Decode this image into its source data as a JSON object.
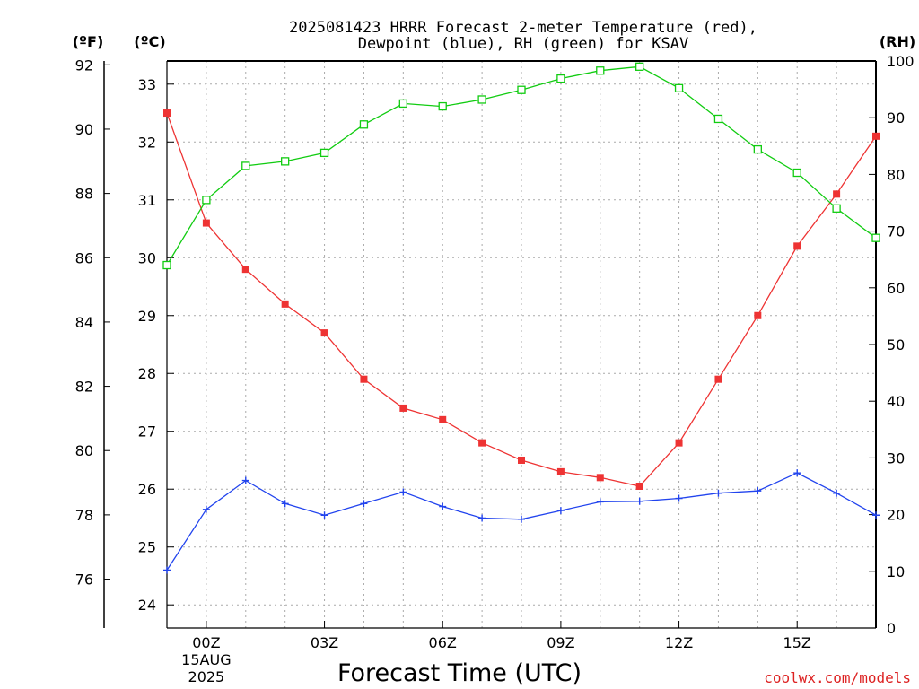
{
  "chart_data": {
    "type": "line",
    "title_line1": "2025081423 HRRR Forecast 2-meter Temperature (red),",
    "title_line2": "Dewpoint (blue), RH (green) for KSAV",
    "left_outer_unit": "(ºF)",
    "left_inner_unit": "(ºC)",
    "right_unit": "(RH)",
    "xlabel": "Forecast Time (UTC)",
    "watermark": "coolwx.com/models",
    "x_hours": [
      -1,
      0,
      1,
      2,
      3,
      4,
      5,
      6,
      7,
      8,
      9,
      10,
      11,
      12,
      13,
      14,
      15,
      16,
      17
    ],
    "x_ticks": [
      {
        "hour": 0,
        "label": "00Z",
        "sub1": "15AUG",
        "sub2": "2025"
      },
      {
        "hour": 3,
        "label": "03Z"
      },
      {
        "hour": 6,
        "label": "06Z"
      },
      {
        "hour": 9,
        "label": "09Z"
      },
      {
        "hour": 12,
        "label": "12Z"
      },
      {
        "hour": 15,
        "label": "15Z"
      }
    ],
    "celsius_axis": {
      "ylim": [
        23.6,
        33.4
      ],
      "ticks": [
        24,
        25,
        26,
        27,
        28,
        29,
        30,
        31,
        32,
        33
      ]
    },
    "fahrenheit_axis": {
      "ticks": [
        76,
        78,
        80,
        82,
        84,
        86,
        88,
        90,
        92
      ]
    },
    "rh_axis": {
      "ylim": [
        0,
        100
      ],
      "ticks": [
        0,
        10,
        20,
        30,
        40,
        50,
        60,
        70,
        80,
        90,
        100
      ]
    },
    "series": [
      {
        "name": "Temperature",
        "axis": "celsius",
        "color": "#ee3333",
        "marker": "square-filled",
        "values": [
          32.5,
          30.6,
          29.8,
          29.2,
          28.7,
          27.9,
          27.4,
          27.2,
          26.8,
          26.5,
          26.3,
          26.2,
          26.05,
          26.8,
          27.9,
          29.0,
          30.2,
          31.1,
          32.1
        ]
      },
      {
        "name": "Dewpoint",
        "axis": "celsius",
        "color": "#2244ee",
        "marker": "plus",
        "values": [
          24.6,
          25.65,
          26.15,
          25.75,
          25.55,
          25.75,
          25.95,
          25.7,
          25.5,
          25.48,
          25.63,
          25.78,
          25.79,
          25.84,
          25.93,
          25.97,
          26.28,
          25.93,
          25.55
        ]
      },
      {
        "name": "RH",
        "axis": "rh",
        "color": "#11cc11",
        "marker": "square-open",
        "values": [
          64,
          75.5,
          81.5,
          82.3,
          83.8,
          88.8,
          92.5,
          92.0,
          93.2,
          94.9,
          96.9,
          98.3,
          99.0,
          95.2,
          89.8,
          84.4,
          80.3,
          74.0,
          68.8
        ]
      }
    ]
  }
}
